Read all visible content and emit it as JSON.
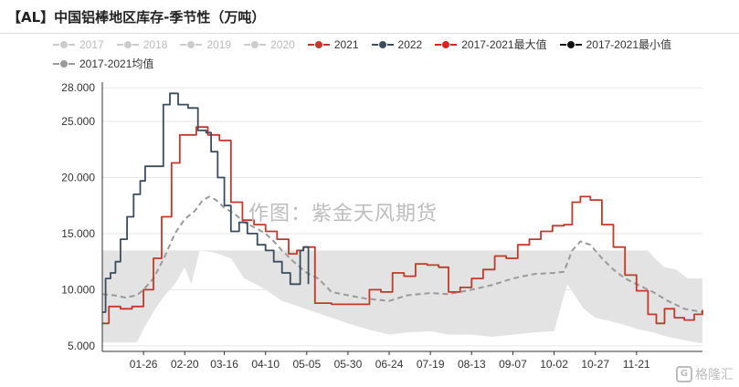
{
  "title": "【AL】中国铝棒地区库存-季节性（万吨）",
  "watermark": "作图：紫金天风期货",
  "brand": "格隆汇",
  "colors": {
    "2017": "#d0d0d0",
    "2018": "#d0d0d0",
    "2019": "#d0d0d0",
    "2020": "#d0d0d0",
    "2021": "#c0392b",
    "2022": "#3c4c5c",
    "max": "#e02020",
    "min": "#111111",
    "avg": "#9a9a9a",
    "band": "#e3e3e3"
  },
  "legend": [
    {
      "key": "2017",
      "label": "2017",
      "inactive": true
    },
    {
      "key": "2018",
      "label": "2018",
      "inactive": true
    },
    {
      "key": "2019",
      "label": "2019",
      "inactive": true
    },
    {
      "key": "2020",
      "label": "2020",
      "inactive": true
    },
    {
      "key": "2021",
      "label": "2021",
      "inactive": false
    },
    {
      "key": "2022",
      "label": "2022",
      "inactive": false
    },
    {
      "key": "max",
      "label": "2017-2021最大值",
      "inactive": false
    },
    {
      "key": "min",
      "label": "2017-2021最小值",
      "inactive": false
    },
    {
      "key": "avg",
      "label": "2017-2021均值",
      "inactive": false
    }
  ],
  "chart_data": {
    "type": "line",
    "ylim": [
      4.5,
      28.5
    ],
    "yticks": [
      "5.000",
      "10.000",
      "15.000",
      "20.000",
      "25.000",
      "28.000"
    ],
    "ytick_values": [
      5,
      10,
      15,
      20,
      25,
      28
    ],
    "xticks": [
      "01-26",
      "02-20",
      "03-16",
      "04-10",
      "05-05",
      "05-30",
      "06-24",
      "07-19",
      "08-13",
      "09-07",
      "10-02",
      "10-27",
      "11-21"
    ],
    "x_start": "01-01",
    "x_end": "12-31",
    "grid": "horizontal",
    "band": {
      "name": "2017-2021最小值 / 2017-2021最大值",
      "upper": [
        [
          "01-01",
          13.5
        ],
        [
          "07-30",
          13.5
        ],
        [
          "08-10",
          13.5
        ],
        [
          "09-15",
          13.5
        ],
        [
          "10-02",
          13.5
        ],
        [
          "10-20",
          13.5
        ],
        [
          "11-28",
          13.5
        ],
        [
          "12-02",
          12.8
        ],
        [
          "12-08",
          12.0
        ],
        [
          "12-15",
          11.8
        ],
        [
          "12-22",
          11.0
        ],
        [
          "12-31",
          11.0
        ]
      ],
      "lower": [
        [
          "01-01",
          5.3
        ],
        [
          "01-22",
          5.3
        ],
        [
          "01-26",
          6.5
        ],
        [
          "01-30",
          7.5
        ],
        [
          "02-03",
          8.5
        ],
        [
          "02-08",
          9.5
        ],
        [
          "02-14",
          10.5
        ],
        [
          "02-20",
          12.0
        ],
        [
          "02-24",
          10.5
        ],
        [
          "03-01",
          13.5
        ],
        [
          "03-10",
          13.3
        ],
        [
          "03-20",
          12.8
        ],
        [
          "03-28",
          11.0
        ],
        [
          "04-04",
          10.5
        ],
        [
          "04-10",
          10.0
        ],
        [
          "04-20",
          9.0
        ],
        [
          "04-30",
          8.5
        ],
        [
          "05-10",
          8.0
        ],
        [
          "05-20",
          7.5
        ],
        [
          "05-30",
          7.0
        ],
        [
          "06-10",
          6.5
        ],
        [
          "06-24",
          6.0
        ],
        [
          "07-05",
          6.2
        ],
        [
          "07-19",
          6.3
        ],
        [
          "07-30",
          6.0
        ],
        [
          "08-13",
          6.0
        ],
        [
          "08-25",
          5.8
        ],
        [
          "09-07",
          6.0
        ],
        [
          "09-20",
          6.2
        ],
        [
          "10-02",
          6.3
        ],
        [
          "10-10",
          10.5
        ],
        [
          "10-20",
          8.3
        ],
        [
          "10-27",
          7.5
        ],
        [
          "11-05",
          7.2
        ],
        [
          "11-15",
          6.8
        ],
        [
          "11-21",
          6.5
        ],
        [
          "12-01",
          6.2
        ],
        [
          "12-10",
          5.8
        ],
        [
          "12-20",
          5.5
        ],
        [
          "12-31",
          5.2
        ]
      ]
    },
    "series": [
      {
        "name": "2017-2021均值",
        "key": "avg",
        "dashed": true,
        "points": [
          [
            "01-01",
            9.6
          ],
          [
            "01-08",
            9.5
          ],
          [
            "01-15",
            9.3
          ],
          [
            "01-22",
            9.5
          ],
          [
            "01-26",
            10.0
          ],
          [
            "02-01",
            11.0
          ],
          [
            "02-08",
            13.0
          ],
          [
            "02-14",
            15.0
          ],
          [
            "02-20",
            16.3
          ],
          [
            "02-26",
            17.0
          ],
          [
            "03-03",
            18.0
          ],
          [
            "03-07",
            18.3
          ],
          [
            "03-11",
            18.0
          ],
          [
            "03-16",
            17.3
          ],
          [
            "03-22",
            16.8
          ],
          [
            "03-28",
            16.0
          ],
          [
            "04-04",
            15.5
          ],
          [
            "04-10",
            15.0
          ],
          [
            "04-15",
            14.3
          ],
          [
            "04-20",
            13.5
          ],
          [
            "04-27",
            12.5
          ],
          [
            "05-05",
            11.5
          ],
          [
            "05-12",
            11.0
          ],
          [
            "05-20",
            9.8
          ],
          [
            "05-30",
            9.5
          ],
          [
            "06-10",
            9.2
          ],
          [
            "06-24",
            9.0
          ],
          [
            "07-05",
            9.5
          ],
          [
            "07-19",
            9.7
          ],
          [
            "07-30",
            9.6
          ],
          [
            "08-13",
            10.0
          ],
          [
            "08-25",
            10.4
          ],
          [
            "09-07",
            11.0
          ],
          [
            "09-20",
            11.4
          ],
          [
            "10-02",
            11.5
          ],
          [
            "10-08",
            11.6
          ],
          [
            "10-13",
            13.5
          ],
          [
            "10-18",
            14.3
          ],
          [
            "10-24",
            14.0
          ],
          [
            "10-31",
            12.8
          ],
          [
            "11-07",
            11.8
          ],
          [
            "11-14",
            11.0
          ],
          [
            "11-21",
            10.5
          ],
          [
            "12-01",
            9.8
          ],
          [
            "12-10",
            9.0
          ],
          [
            "12-20",
            8.3
          ],
          [
            "12-31",
            8.0
          ]
        ]
      },
      {
        "name": "2021",
        "key": "2021",
        "step": true,
        "points": [
          [
            "01-01",
            7.0
          ],
          [
            "01-05",
            8.5
          ],
          [
            "01-12",
            8.3
          ],
          [
            "01-19",
            8.5
          ],
          [
            "01-26",
            10.0
          ],
          [
            "02-01",
            12.8
          ],
          [
            "02-06",
            16.5
          ],
          [
            "02-12",
            21.3
          ],
          [
            "02-17",
            23.8
          ],
          [
            "02-27",
            24.5
          ],
          [
            "03-06",
            23.8
          ],
          [
            "03-13",
            23.3
          ],
          [
            "03-20",
            17.8
          ],
          [
            "03-27",
            16.2
          ],
          [
            "04-03",
            15.8
          ],
          [
            "04-10",
            15.2
          ],
          [
            "04-17",
            14.5
          ],
          [
            "04-24",
            13.2
          ],
          [
            "04-29",
            13.5
          ],
          [
            "05-03",
            13.8
          ],
          [
            "05-10",
            8.8
          ],
          [
            "05-20",
            8.7
          ],
          [
            "05-30",
            8.7
          ],
          [
            "06-05",
            8.7
          ],
          [
            "06-12",
            10.0
          ],
          [
            "06-19",
            9.8
          ],
          [
            "06-26",
            11.5
          ],
          [
            "07-03",
            11.2
          ],
          [
            "07-10",
            12.3
          ],
          [
            "07-17",
            12.2
          ],
          [
            "07-24",
            12.0
          ],
          [
            "07-30",
            9.8
          ],
          [
            "08-06",
            10.2
          ],
          [
            "08-13",
            11.0
          ],
          [
            "08-20",
            11.8
          ],
          [
            "08-27",
            13.0
          ],
          [
            "09-03",
            12.8
          ],
          [
            "09-10",
            14.0
          ],
          [
            "09-17",
            14.5
          ],
          [
            "09-24",
            15.2
          ],
          [
            "10-01",
            15.7
          ],
          [
            "10-08",
            15.8
          ],
          [
            "10-13",
            17.8
          ],
          [
            "10-18",
            18.3
          ],
          [
            "10-24",
            18.0
          ],
          [
            "10-31",
            15.8
          ],
          [
            "11-07",
            13.8
          ],
          [
            "11-14",
            11.3
          ],
          [
            "11-21",
            9.9
          ],
          [
            "11-28",
            7.8
          ],
          [
            "12-03",
            7.0
          ],
          [
            "12-08",
            8.3
          ],
          [
            "12-14",
            7.5
          ],
          [
            "12-20",
            7.3
          ],
          [
            "12-26",
            7.8
          ],
          [
            "12-31",
            8.2
          ]
        ]
      },
      {
        "name": "2022",
        "key": "2022",
        "step": true,
        "points": [
          [
            "01-01",
            8.0
          ],
          [
            "01-03",
            11.0
          ],
          [
            "01-06",
            11.5
          ],
          [
            "01-09",
            12.5
          ],
          [
            "01-12",
            14.5
          ],
          [
            "01-16",
            16.5
          ],
          [
            "01-20",
            18.5
          ],
          [
            "01-24",
            19.7
          ],
          [
            "01-27",
            21.0
          ],
          [
            "01-31",
            21.0
          ],
          [
            "02-05",
            21.0
          ],
          [
            "02-07",
            26.5
          ],
          [
            "02-11",
            27.5
          ],
          [
            "02-16",
            26.5
          ],
          [
            "02-22",
            26.2
          ],
          [
            "02-28",
            24.2
          ],
          [
            "03-05",
            24.0
          ],
          [
            "03-08",
            22.3
          ],
          [
            "03-12",
            20.0
          ],
          [
            "03-16",
            17.5
          ],
          [
            "03-20",
            15.2
          ],
          [
            "03-25",
            16.0
          ],
          [
            "03-30",
            15.0
          ],
          [
            "04-05",
            14.0
          ],
          [
            "04-10",
            13.5
          ],
          [
            "04-15",
            12.5
          ],
          [
            "04-20",
            11.5
          ],
          [
            "04-25",
            10.5
          ],
          [
            "05-01",
            13.5
          ],
          [
            "05-03",
            13.8
          ],
          [
            "05-06",
            10.5
          ]
        ]
      }
    ]
  }
}
